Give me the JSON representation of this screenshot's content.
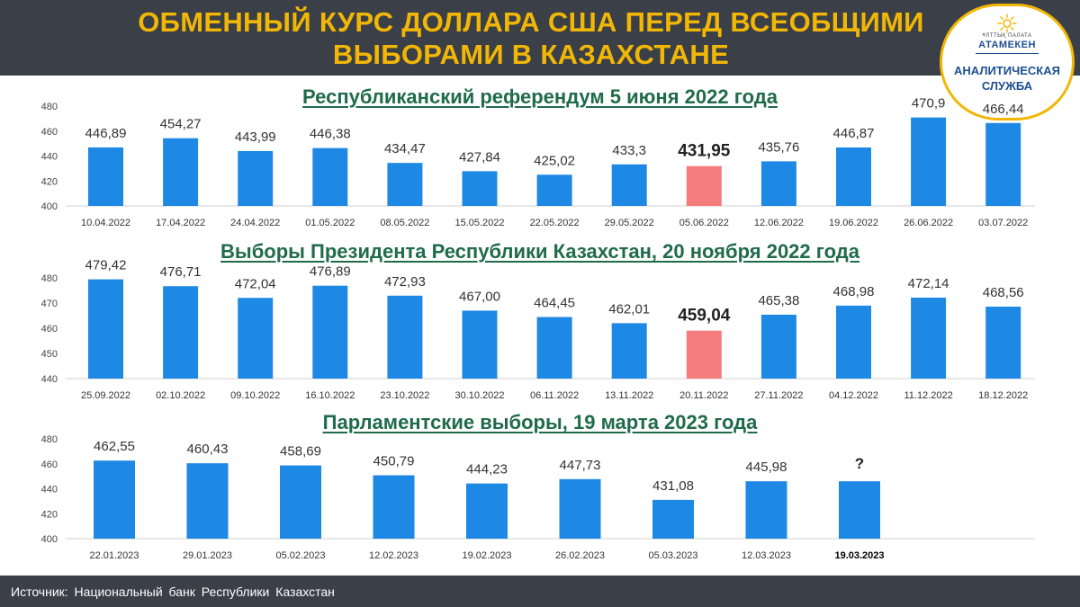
{
  "header": {
    "title_line1": "ОБМЕННЫЙ КУРС ДОЛЛАРА США ПЕРЕД ВСЕОБЩИМИ",
    "title_line2": "ВЫБОРАМИ В КАЗАХСТАНЕ"
  },
  "logo": {
    "top_text": "ҰЛТТЫҚ ПАЛАТА",
    "name": "АТАМЕКЕН",
    "service_line1": "АНАЛИТИЧЕСКАЯ",
    "service_line2": "СЛУЖБА"
  },
  "footer": {
    "source": "Источник: Национальный банк Республики Казахстан"
  },
  "colors": {
    "bar": "#1e88e5",
    "highlight": "#f47c7c",
    "header_bg": "#3a3f48",
    "title": "#f2b705",
    "chart_title": "#1f6b4a"
  },
  "chart_data": [
    {
      "type": "bar",
      "title": "Республиканский референдум 5 июня 2022 года",
      "categories": [
        "10.04.2022",
        "17.04.2022",
        "24.04.2022",
        "01.05.2022",
        "08.05.2022",
        "15.05.2022",
        "22.05.2022",
        "29.05.2022",
        "05.06.2022",
        "12.06.2022",
        "19.06.2022",
        "26.06.2022",
        "03.07.2022"
      ],
      "values": [
        446.89,
        454.27,
        443.99,
        446.38,
        434.47,
        427.84,
        425.02,
        433.3,
        431.95,
        435.76,
        446.87,
        470.9,
        466.44
      ],
      "labels": [
        "446,89",
        "454,27",
        "443,99",
        "446,38",
        "434,47",
        "427,84",
        "425,02",
        "433,3",
        "431,95",
        "435,76",
        "446,87",
        "470,9",
        "466,44"
      ],
      "highlight_index": 8,
      "yticks": [
        "400",
        "420",
        "440",
        "460",
        "480"
      ],
      "ylim": [
        400,
        480
      ]
    },
    {
      "type": "bar",
      "title": "Выборы Президента Республики Казахстан, 20 ноября 2022 года",
      "categories": [
        "25.09.2022",
        "02.10.2022",
        "09.10.2022",
        "16.10.2022",
        "23.10.2022",
        "30.10.2022",
        "06.11.2022",
        "13.11.2022",
        "20.11.2022",
        "27.11.2022",
        "04.12.2022",
        "11.12.2022",
        "18.12.2022"
      ],
      "values": [
        479.42,
        476.71,
        472.04,
        476.89,
        472.93,
        467.0,
        464.45,
        462.01,
        459.04,
        465.38,
        468.98,
        472.14,
        468.56
      ],
      "labels": [
        "479,42",
        "476,71",
        "472,04",
        "476,89",
        "472,93",
        "467,00",
        "464,45",
        "462,01",
        "459,04",
        "465,38",
        "468,98",
        "472,14",
        "468,56"
      ],
      "highlight_index": 8,
      "yticks": [
        "440",
        "450",
        "460",
        "470",
        "480"
      ],
      "ylim": [
        440,
        480
      ]
    },
    {
      "type": "bar",
      "title": "Парламентские выборы, 19 марта 2023 года",
      "categories": [
        "22.01.2023",
        "29.01.2023",
        "05.02.2023",
        "12.02.2023",
        "19.02.2023",
        "26.02.2023",
        "05.03.2023",
        "12.03.2023",
        "19.03.2023"
      ],
      "values": [
        462.55,
        460.43,
        458.69,
        450.79,
        444.23,
        447.73,
        431.08,
        445.98,
        445.98
      ],
      "labels": [
        "462,55",
        "460,43",
        "458,69",
        "450,79",
        "444,23",
        "447,73",
        "431,08",
        "445,98",
        "?"
      ],
      "bold_category_index": 8,
      "yticks": [
        "400",
        "420",
        "440",
        "460",
        "480"
      ],
      "ylim": [
        400,
        480
      ]
    }
  ]
}
